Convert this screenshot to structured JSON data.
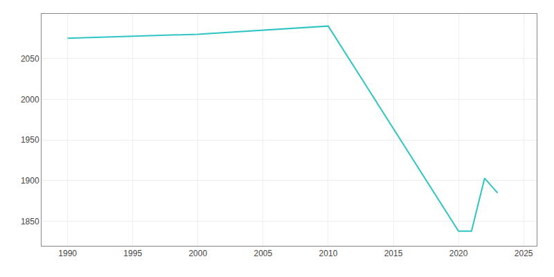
{
  "chart_data": {
    "type": "line",
    "x": [
      1990,
      2000,
      2010,
      2020,
      2021,
      2022,
      2023
    ],
    "values": [
      2075,
      2080,
      2090,
      1838,
      1838,
      1903,
      1885
    ],
    "color": "#2EC4C4",
    "xlim": [
      1988,
      2026
    ],
    "ylim": [
      1820,
      2105
    ],
    "xticks": [
      1990,
      1995,
      2000,
      2005,
      2010,
      2015,
      2020,
      2025
    ],
    "yticks": [
      1850,
      1900,
      1950,
      2000,
      2050
    ],
    "grid": true
  }
}
